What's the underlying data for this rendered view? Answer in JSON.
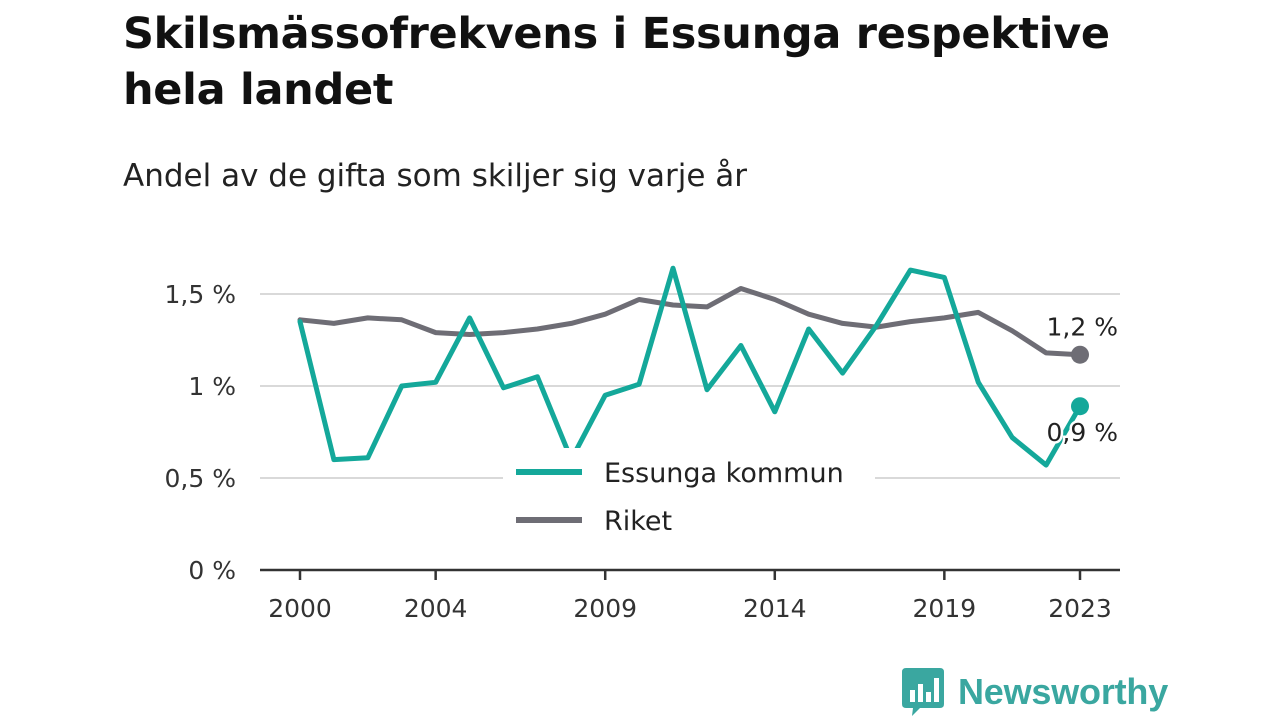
{
  "header": {
    "title": "Skilsmässofrekvens i Essunga respektive hela landet",
    "subtitle": "Andel av de gifta som skiljer sig varje år"
  },
  "brand": {
    "name": "Newsworthy",
    "icon": "newsworthy-logo-icon",
    "color": "#3aa7a0"
  },
  "chart_data": {
    "type": "line",
    "x": [
      2000,
      2001,
      2002,
      2003,
      2004,
      2005,
      2006,
      2007,
      2008,
      2009,
      2010,
      2011,
      2012,
      2013,
      2014,
      2015,
      2016,
      2017,
      2018,
      2019,
      2020,
      2021,
      2022,
      2023
    ],
    "x_ticks": [
      2000,
      2004,
      2009,
      2014,
      2019,
      2023
    ],
    "x_tick_labels": [
      "2000",
      "2004",
      "2009",
      "2014",
      "2019",
      "2023"
    ],
    "y_ticks": [
      0,
      0.5,
      1,
      1.5
    ],
    "y_tick_labels": [
      "0 %",
      "0,5 %",
      "1 %",
      "1,5 %"
    ],
    "ylim": [
      0,
      1.75
    ],
    "xlim": [
      1999,
      2024
    ],
    "grid": true,
    "legend_position": "bottom-center",
    "series": [
      {
        "name": "Essunga kommun",
        "color": "#14a89a",
        "values": [
          1.35,
          0.6,
          0.61,
          1.0,
          1.02,
          1.37,
          0.99,
          1.05,
          0.6,
          0.95,
          1.01,
          1.64,
          0.98,
          1.22,
          0.86,
          1.31,
          1.07,
          1.33,
          1.63,
          1.59,
          1.02,
          0.72,
          0.57,
          0.89
        ],
        "end_label": "0,9 %"
      },
      {
        "name": "Riket",
        "color": "#6e6d75",
        "values": [
          1.36,
          1.34,
          1.37,
          1.36,
          1.29,
          1.28,
          1.29,
          1.31,
          1.34,
          1.39,
          1.47,
          1.44,
          1.43,
          1.53,
          1.47,
          1.39,
          1.34,
          1.32,
          1.35,
          1.37,
          1.4,
          1.3,
          1.18,
          1.17
        ],
        "end_label": "1,2 %"
      }
    ]
  }
}
